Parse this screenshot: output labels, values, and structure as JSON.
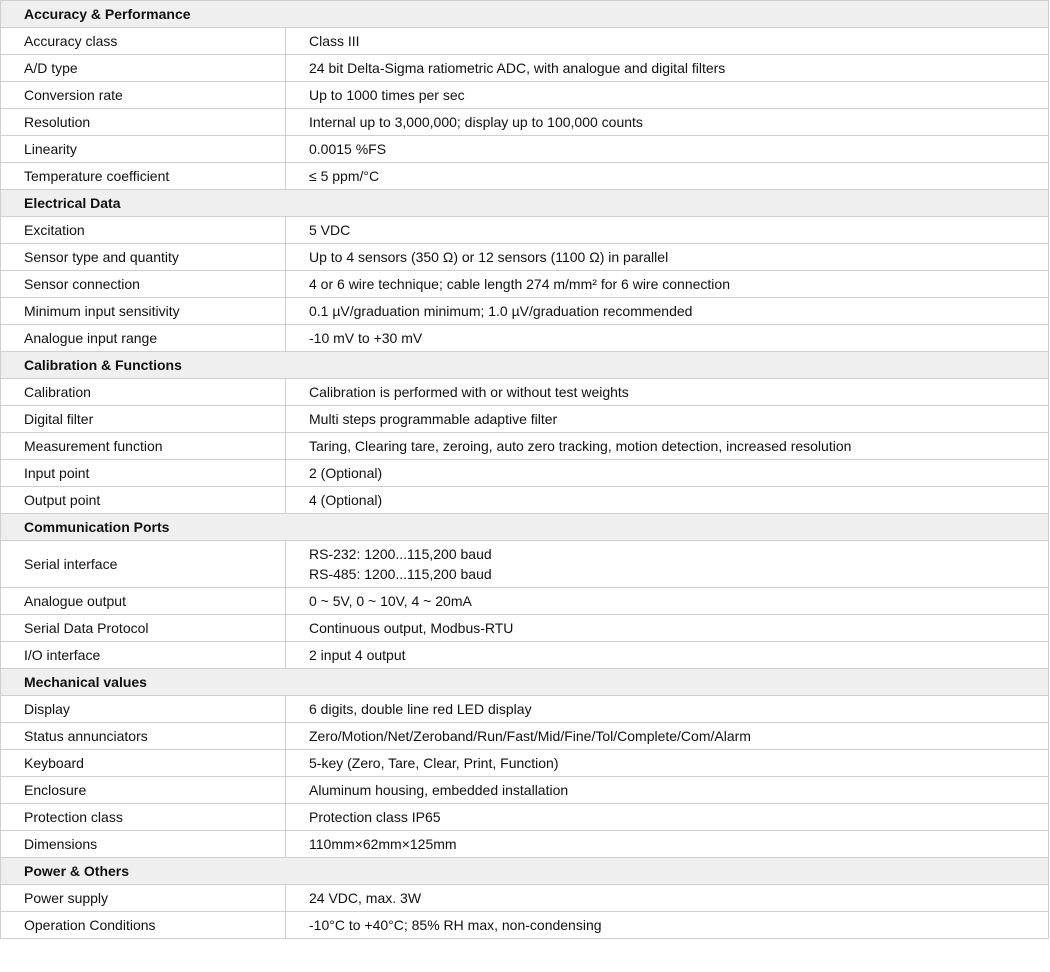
{
  "sections": [
    {
      "title": "Accuracy & Performance",
      "rows": [
        [
          "Accuracy class",
          "Class III"
        ],
        [
          "A/D type",
          "24 bit Delta-Sigma ratiometric ADC, with analogue and digital filters"
        ],
        [
          "Conversion rate",
          "Up to 1000 times per sec"
        ],
        [
          "Resolution",
          "Internal up to 3,000,000; display up to 100,000 counts"
        ],
        [
          "Linearity",
          "0.0015 %FS"
        ],
        [
          "Temperature coefficient",
          "≤ 5 ppm/°C"
        ]
      ]
    },
    {
      "title": "Electrical Data",
      "rows": [
        [
          "Excitation",
          "5 VDC"
        ],
        [
          "Sensor type and quantity",
          "Up to 4 sensors (350 Ω) or 12 sensors (1100 Ω) in parallel"
        ],
        [
          "Sensor connection",
          "4 or 6 wire technique; cable length 274 m/mm² for 6 wire connection"
        ],
        [
          "Minimum input sensitivity",
          "0.1 µV/graduation minimum; 1.0 µV/graduation recommended"
        ],
        [
          "Analogue input range",
          "-10 mV to +30 mV"
        ]
      ]
    },
    {
      "title": "Calibration & Functions",
      "rows": [
        [
          "Calibration",
          "Calibration is performed with or without test weights"
        ],
        [
          "Digital filter",
          "Multi steps programmable adaptive filter"
        ],
        [
          "Measurement function",
          "Taring, Clearing tare, zeroing, auto zero tracking, motion detection, increased resolution"
        ],
        [
          "Input point",
          "2 (Optional)"
        ],
        [
          "Output point",
          "4 (Optional)"
        ]
      ]
    },
    {
      "title": "Communication Ports",
      "rows": [
        [
          "Serial interface",
          "RS-232: 1200...115,200 baud",
          "RS-485: 1200...115,200 baud"
        ],
        [
          "Analogue output",
          "0 ~ 5V, 0 ~ 10V, 4 ~ 20mA"
        ],
        [
          "Serial Data Protocol",
          "Continuous output, Modbus-RTU"
        ],
        [
          "I/O interface",
          "2 input 4 output"
        ]
      ]
    },
    {
      "title": "Mechanical values",
      "rows": [
        [
          "Display",
          "6 digits, double line red LED display"
        ],
        [
          "Status annunciators",
          "Zero/Motion/Net/Zeroband/Run/Fast/Mid/Fine/Tol/Complete/Com/Alarm"
        ],
        [
          "Keyboard",
          "5-key (Zero, Tare, Clear, Print, Function)"
        ],
        [
          "Enclosure",
          "Aluminum housing, embedded installation"
        ],
        [
          "Protection class",
          "Protection class IP65"
        ],
        [
          "Dimensions",
          "110mm×62mm×125mm"
        ]
      ]
    },
    {
      "title": "Power & Others",
      "rows": [
        [
          "Power supply",
          "24 VDC, max. 3W"
        ],
        [
          "Operation Conditions",
          "-10°C to +40°C; 85% RH max, non-condensing"
        ]
      ]
    }
  ]
}
